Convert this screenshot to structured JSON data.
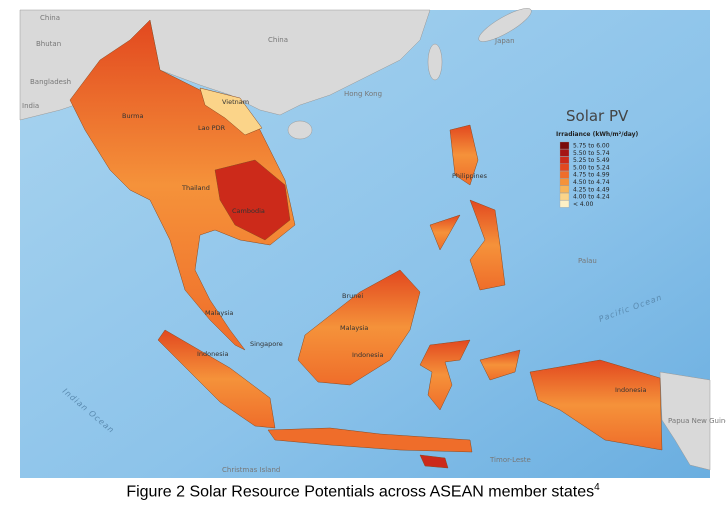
{
  "map": {
    "labels": [
      "China",
      "Bhutan",
      "Bangladesh",
      "India",
      "China",
      "Japan",
      "Vietnam",
      "Hong Kong",
      "Burma",
      "Lao PDR",
      "Thailand",
      "Cambodia",
      "Philippines",
      "Palau",
      "Brunei",
      "Malaysia",
      "Malaysia",
      "Singapore",
      "Indonesia",
      "Indonesia",
      "Indonesia",
      "Papua New Guinea",
      "Timor-Leste",
      "Christmas Island",
      "Indian Ocean",
      "Pacific Ocean"
    ],
    "legend": {
      "title": "Solar PV",
      "subtitle": "Irradiance (kWh/m²/day)",
      "items": [
        {
          "label": "5.75 to 6.00",
          "color": "#7a0c0c"
        },
        {
          "label": "5.50 to 5.74",
          "color": "#a51414"
        },
        {
          "label": "5.25 to 5.49",
          "color": "#cc2a1a"
        },
        {
          "label": "5.00 to 5.24",
          "color": "#e2481f"
        },
        {
          "label": "4.75 to 4.99",
          "color": "#ef6d2a"
        },
        {
          "label": "4.50 to 4.74",
          "color": "#f5923a"
        },
        {
          "label": "4.25 to 4.49",
          "color": "#f8b559"
        },
        {
          "label": "4.00 to 4.24",
          "color": "#fbd489"
        },
        {
          "label": "< 4.00",
          "color": "#fdf0c6"
        }
      ]
    }
  },
  "caption": {
    "text": "Figure 2 Solar Resource Potentials across ASEAN member states",
    "superscript": "4"
  }
}
